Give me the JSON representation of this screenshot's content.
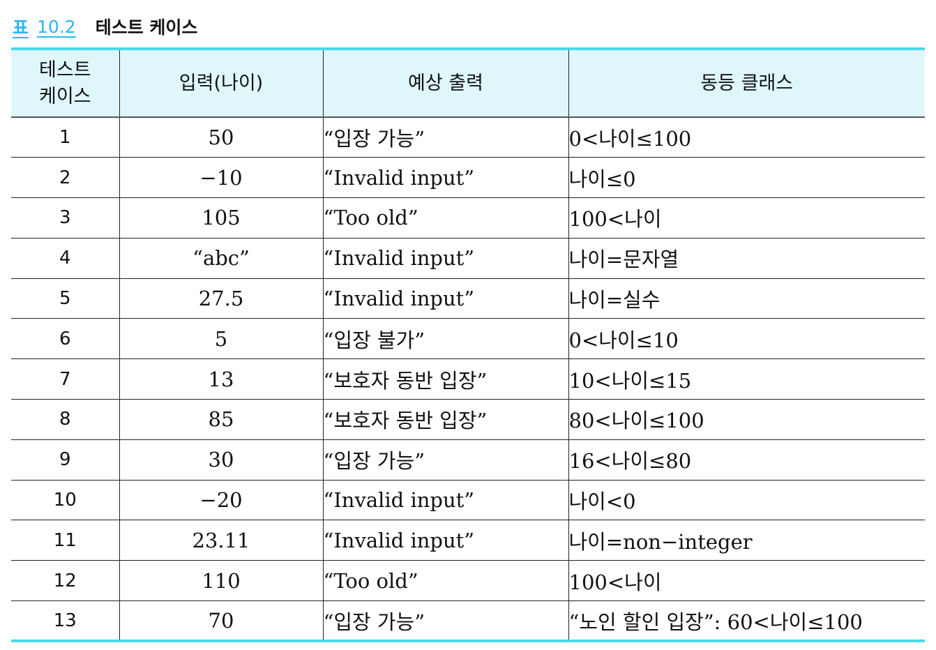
{
  "caption": {
    "label": "표",
    "number": "10.2",
    "title": "테스트 케이스"
  },
  "table": {
    "headers": [
      "테스트\n케이스",
      "입력(나이)",
      "예상 출력",
      "동등 클래스"
    ],
    "rows": [
      [
        "1",
        "50",
        "“입장 가능”",
        "0<나이≤100"
      ],
      [
        "2",
        "−10",
        "“Invalid input”",
        "나이≤0"
      ],
      [
        "3",
        "105",
        "“Too old”",
        "100<나이"
      ],
      [
        "4",
        "“abc”",
        "“Invalid input”",
        "나이=문자열"
      ],
      [
        "5",
        "27.5",
        "“Invalid input”",
        "나이=실수"
      ],
      [
        "6",
        "5",
        "“입장 불가”",
        "0<나이≤10"
      ],
      [
        "7",
        "13",
        "“보호자 동반 입장”",
        "10<나이≤15"
      ],
      [
        "8",
        "85",
        "“보호자 동반 입장”",
        "80<나이≤100"
      ],
      [
        "9",
        "30",
        "“입장 가능”",
        "16<나이≤80"
      ],
      [
        "10",
        "−20",
        "“Invalid input”",
        "나이<0"
      ],
      [
        "11",
        "23.11",
        "“Invalid input”",
        "나이=non−integer"
      ],
      [
        "12",
        "110",
        "“Too old”",
        "100<나이"
      ],
      [
        "13",
        "70",
        "“입장 가능”",
        "“노인 할인 입장”: 60<나이≤100"
      ]
    ]
  }
}
